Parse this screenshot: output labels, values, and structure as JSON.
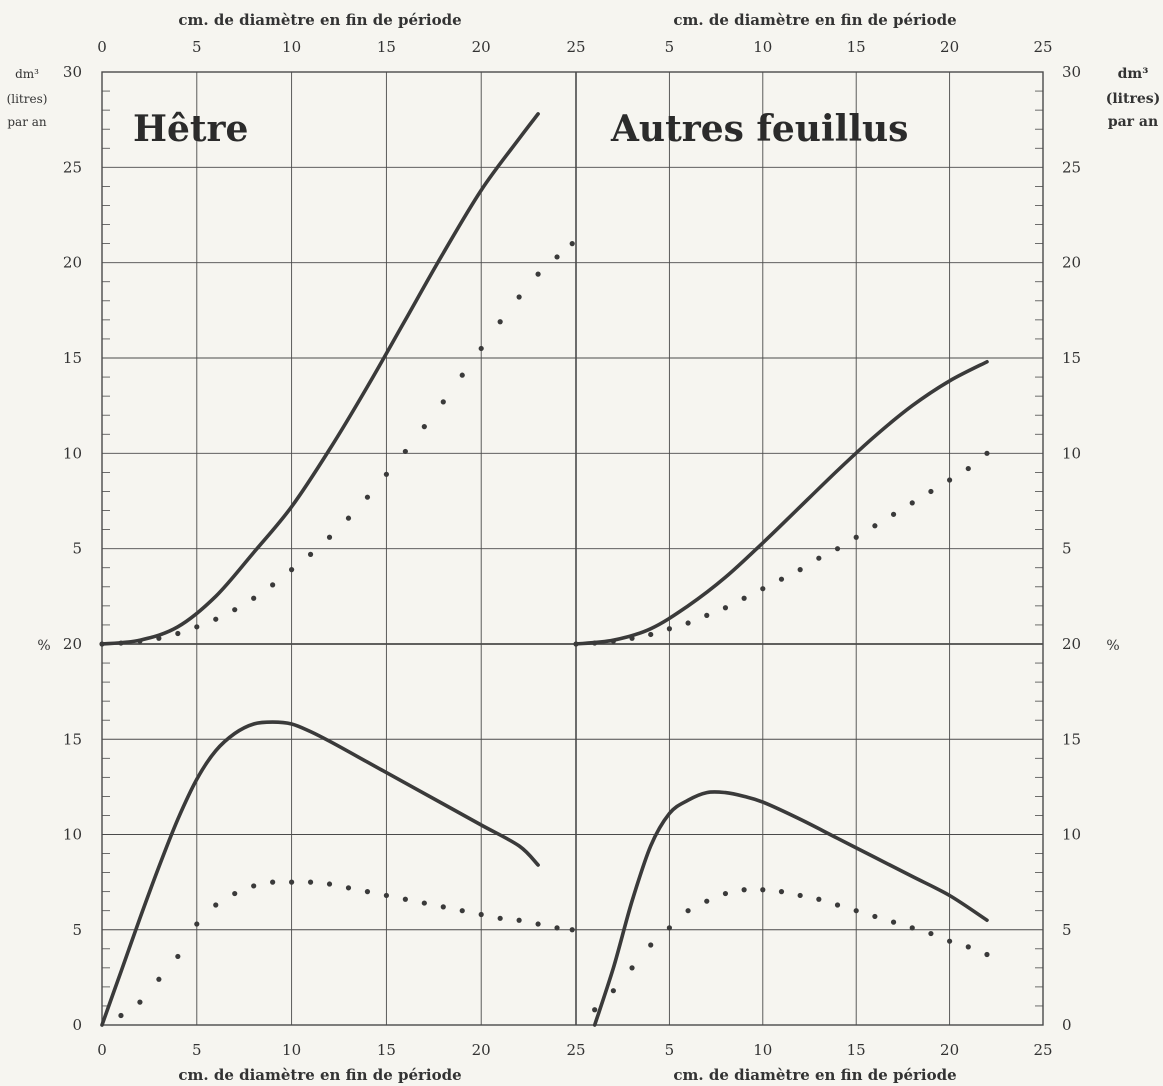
{
  "chart_data": [
    {
      "type": "line",
      "title": "Hêtre",
      "xlabel_top": "cm. de diamètre en fin de période",
      "xlabel_bottom": "cm. de diamètre en fin de période",
      "xlim": [
        0,
        25
      ],
      "xticks": [
        0,
        5,
        10,
        15,
        20,
        25
      ],
      "upper_panel": {
        "ylabel": "dm³ (litres) par an",
        "ylim": [
          0,
          30
        ],
        "yticks": [
          0,
          5,
          10,
          15,
          20,
          25,
          30
        ],
        "series": [
          {
            "style": "solid",
            "x": [
              0,
              2,
              4,
              6,
              8,
              10,
              12,
              14,
              16,
              18,
              20,
              22,
              23
            ],
            "y": [
              0,
              0.2,
              0.9,
              2.5,
              4.8,
              7.2,
              10.2,
              13.5,
              17,
              20.5,
              23.8,
              26.5,
              27.8
            ]
          },
          {
            "style": "dotted",
            "x": [
              0,
              1,
              2,
              3,
              4,
              5,
              6,
              7,
              8,
              9,
              10,
              11,
              12,
              13,
              14,
              15,
              16,
              17,
              18,
              19,
              20,
              21,
              22,
              23,
              24,
              24.8
            ],
            "y": [
              0,
              0.05,
              0.15,
              0.3,
              0.55,
              0.9,
              1.3,
              1.8,
              2.4,
              3.1,
              3.9,
              4.7,
              5.6,
              6.6,
              7.7,
              8.9,
              10.1,
              11.4,
              12.7,
              14.1,
              15.5,
              16.9,
              18.2,
              19.4,
              20.3,
              21
            ]
          }
        ]
      },
      "lower_panel": {
        "ylabel": "%",
        "ylim": [
          0,
          20
        ],
        "yticks": [
          0,
          5,
          10,
          15,
          20
        ],
        "series": [
          {
            "style": "solid",
            "x": [
              0,
              1,
              2,
              3,
              4,
              5,
              6,
              7,
              8,
              9,
              10,
              11,
              12,
              14,
              16,
              18,
              20,
              22,
              23
            ],
            "y": [
              0,
              2.8,
              5.6,
              8.3,
              10.8,
              12.9,
              14.4,
              15.3,
              15.8,
              15.9,
              15.8,
              15.4,
              14.9,
              13.8,
              12.7,
              11.6,
              10.5,
              9.4,
              8.4
            ]
          },
          {
            "style": "dotted",
            "x": [
              1,
              2,
              3,
              4,
              5,
              6,
              7,
              8,
              9,
              10,
              11,
              12,
              13,
              14,
              15,
              16,
              17,
              18,
              19,
              20,
              21,
              22,
              23,
              24,
              24.8
            ],
            "y": [
              0.5,
              1.2,
              2.4,
              3.6,
              5.3,
              6.3,
              6.9,
              7.3,
              7.5,
              7.5,
              7.5,
              7.4,
              7.2,
              7,
              6.8,
              6.6,
              6.4,
              6.2,
              6,
              5.8,
              5.6,
              5.5,
              5.3,
              5.1,
              5
            ]
          }
        ]
      }
    },
    {
      "type": "line",
      "title": "Autres feuillus",
      "xlabel_top": "cm. de diamètre en fin de période",
      "xlabel_bottom": "cm. de diamètre en fin de période",
      "xlim": [
        0,
        25
      ],
      "xticks": [
        5,
        10,
        15,
        20,
        25
      ],
      "upper_panel": {
        "ylabel": "dm³ (litres) par an",
        "ylim": [
          0,
          30
        ],
        "yticks": [
          0,
          5,
          10,
          15,
          20,
          25,
          30
        ],
        "series": [
          {
            "style": "solid",
            "x": [
              0,
              2,
              4,
              6,
              8,
              10,
              12,
              14,
              16,
              18,
              20,
              22
            ],
            "y": [
              0,
              0.2,
              0.8,
              2,
              3.5,
              5.3,
              7.2,
              9.1,
              10.9,
              12.5,
              13.8,
              14.8
            ]
          },
          {
            "style": "dotted",
            "x": [
              0,
              1,
              2,
              3,
              4,
              5,
              6,
              7,
              8,
              9,
              10,
              11,
              12,
              13,
              14,
              15,
              16,
              17,
              18,
              19,
              20,
              21,
              22
            ],
            "y": [
              0,
              0.05,
              0.15,
              0.3,
              0.5,
              0.8,
              1.1,
              1.5,
              1.9,
              2.4,
              2.9,
              3.4,
              3.9,
              4.5,
              5,
              5.6,
              6.2,
              6.8,
              7.4,
              8,
              8.6,
              9.2,
              10
            ]
          }
        ]
      },
      "lower_panel": {
        "ylabel": "%",
        "ylim": [
          0,
          20
        ],
        "yticks": [
          0,
          5,
          10,
          15,
          20
        ],
        "series": [
          {
            "style": "solid",
            "x": [
              1,
              2,
              3,
              4,
              5,
              6,
              7,
              8,
              9,
              10,
              12,
              14,
              16,
              18,
              20,
              22
            ],
            "y": [
              0,
              3,
              6.5,
              9.4,
              11.1,
              11.8,
              12.2,
              12.2,
              12,
              11.7,
              10.8,
              9.8,
              8.8,
              7.8,
              6.8,
              5.5
            ]
          },
          {
            "style": "dotted",
            "x": [
              1,
              2,
              3,
              4,
              5,
              6,
              7,
              8,
              9,
              10,
              11,
              12,
              13,
              14,
              15,
              16,
              17,
              18,
              19,
              20,
              21,
              22
            ],
            "y": [
              0.8,
              1.8,
              3,
              4.2,
              5.1,
              6,
              6.5,
              6.9,
              7.1,
              7.1,
              7,
              6.8,
              6.6,
              6.3,
              6,
              5.7,
              5.4,
              5.1,
              4.8,
              4.4,
              4.1,
              3.7
            ]
          }
        ]
      }
    }
  ],
  "axis_labels": {
    "left_units": [
      "dm³",
      "(litres)",
      "par an"
    ],
    "right_units": [
      "dm³",
      "(litres)",
      "par an"
    ],
    "percent_left": "%",
    "percent_right": "%"
  },
  "colors": {
    "line": "#3a3a3a",
    "grid": "#4a4a4a",
    "background": "#f6f5f0"
  }
}
